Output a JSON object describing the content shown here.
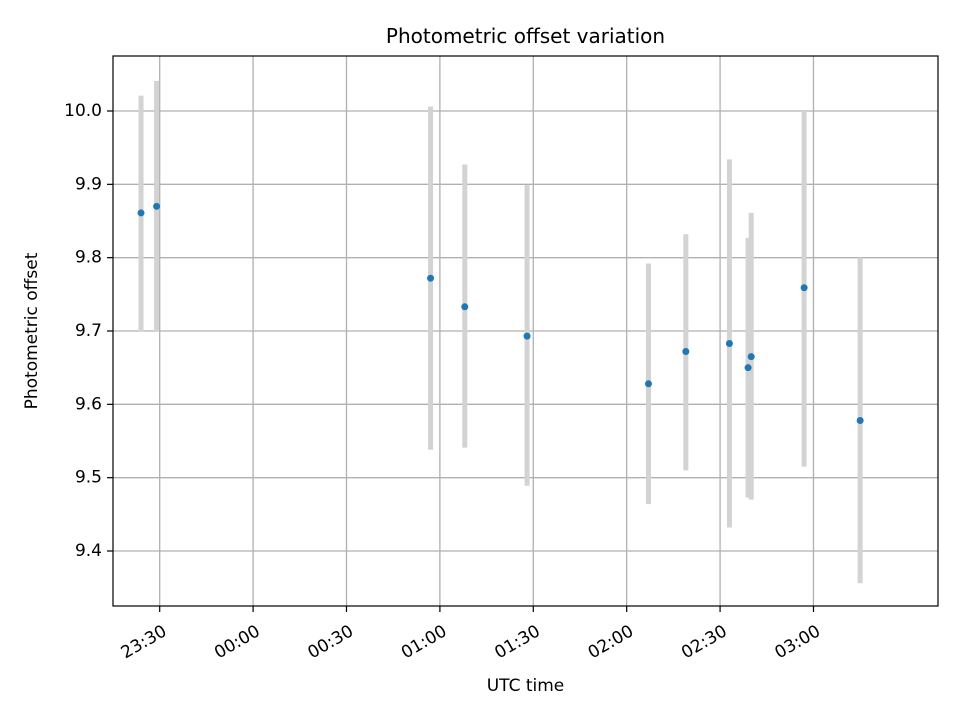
{
  "chart_data": {
    "type": "scatter",
    "title": "Photometric offset variation",
    "xlabel": "UTC time",
    "ylabel": "Photometric offset",
    "x_axis_type": "time",
    "xlim": [
      "23:15",
      "03:40"
    ],
    "ylim": [
      9.325,
      10.075
    ],
    "grid": true,
    "legend": "none",
    "x_ticks": [
      "23:30",
      "00:00",
      "00:30",
      "01:00",
      "01:30",
      "02:00",
      "02:30",
      "03:00"
    ],
    "y_ticks": [
      9.4,
      9.5,
      9.6,
      9.7,
      9.8,
      9.9,
      10.0
    ],
    "y_tick_labels": [
      "9.4",
      "9.5",
      "9.6",
      "9.7",
      "9.8",
      "9.9",
      "10.0"
    ],
    "series": [
      {
        "points": [
          {
            "x": "23:24",
            "y": 9.861,
            "err_low": 9.699,
            "err_high": 10.021
          },
          {
            "x": "23:29",
            "y": 9.87,
            "err_low": 9.699,
            "err_high": 10.041
          },
          {
            "x": "00:57",
            "y": 9.772,
            "err_low": 9.538,
            "err_high": 10.006
          },
          {
            "x": "01:08",
            "y": 9.733,
            "err_low": 9.541,
            "err_high": 9.927
          },
          {
            "x": "01:28",
            "y": 9.693,
            "err_low": 9.489,
            "err_high": 9.899
          },
          {
            "x": "02:07",
            "y": 9.628,
            "err_low": 9.464,
            "err_high": 9.792
          },
          {
            "x": "02:19",
            "y": 9.672,
            "err_low": 9.51,
            "err_high": 9.832
          },
          {
            "x": "02:33",
            "y": 9.683,
            "err_low": 9.432,
            "err_high": 9.934
          },
          {
            "x": "02:39",
            "y": 9.65,
            "err_low": 9.473,
            "err_high": 9.827
          },
          {
            "x": "02:40",
            "y": 9.665,
            "err_low": 9.47,
            "err_high": 9.861
          },
          {
            "x": "02:57",
            "y": 9.759,
            "err_low": 9.515,
            "err_high": 10.0
          },
          {
            "x": "03:15",
            "y": 9.578,
            "err_low": 9.356,
            "err_high": 9.8
          }
        ]
      }
    ],
    "colors": {
      "marker": "#1f77b4",
      "errorbar": "#d3d3d3",
      "grid": "#b0b0b0",
      "axes": "#000000"
    }
  }
}
